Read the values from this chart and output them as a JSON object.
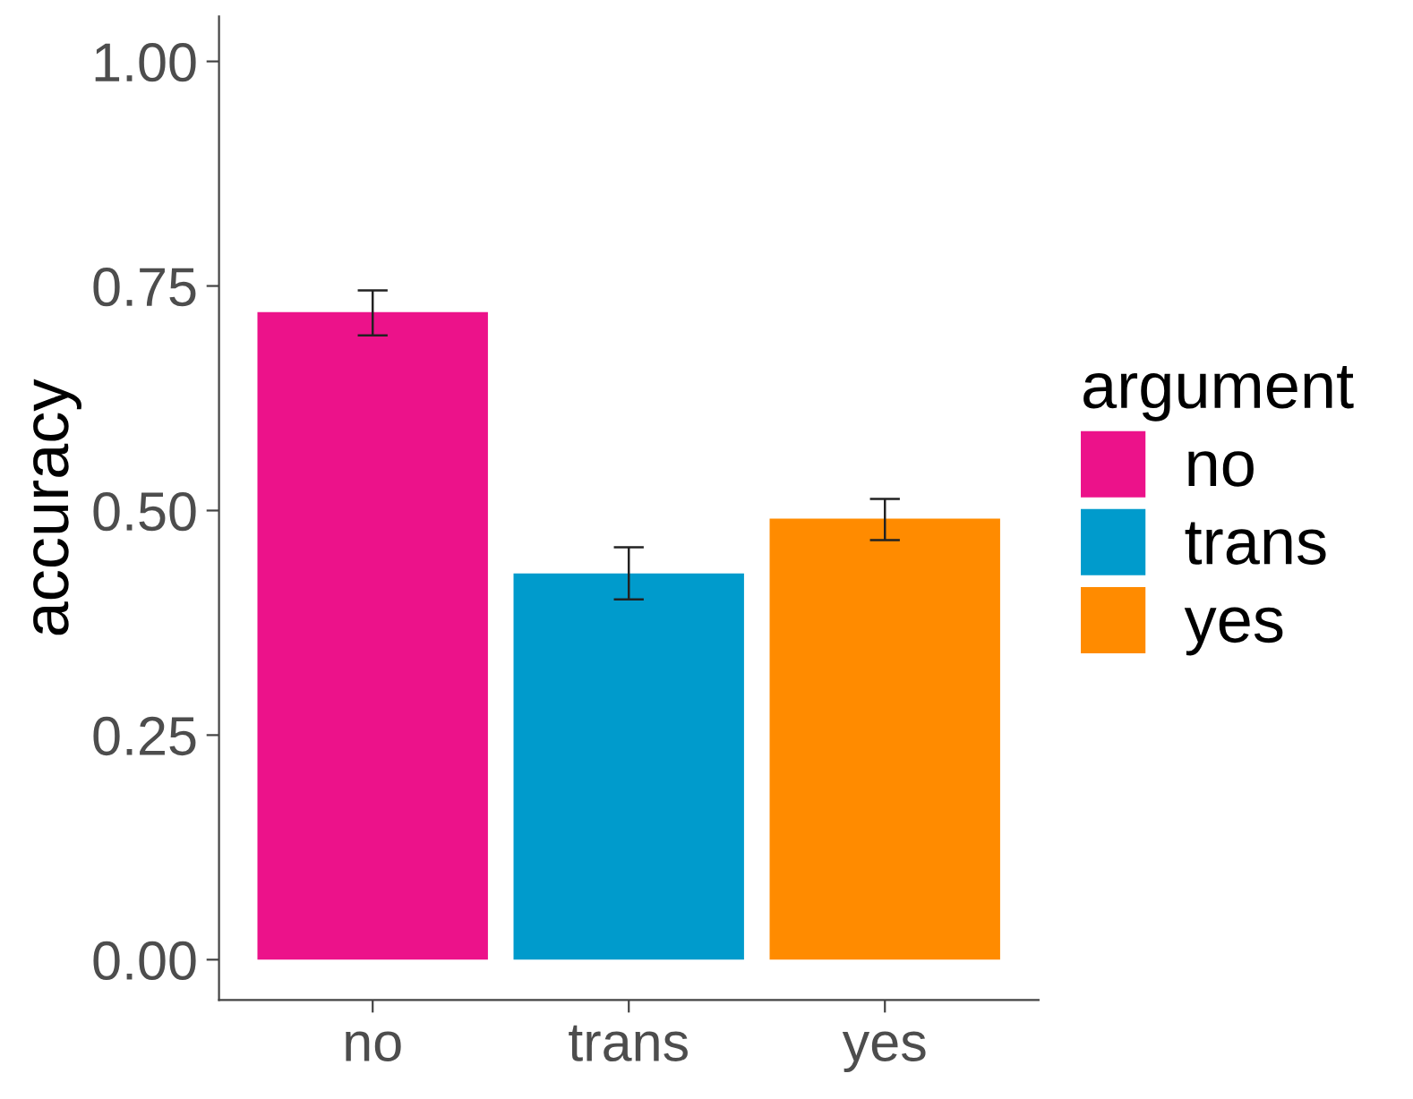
{
  "chart_data": {
    "type": "bar",
    "ylabel": "accuracy",
    "legend_title": "argument",
    "categories": [
      "no",
      "trans",
      "yes"
    ],
    "series": [
      {
        "name": "no",
        "color": "#ec128a",
        "values": [
          0.721,
          null,
          null
        ],
        "errors": [
          [
            0.695,
            0.745
          ],
          null,
          null
        ]
      },
      {
        "name": "trans",
        "color": "#009bcc",
        "values": [
          null,
          0.43,
          null
        ],
        "errors": [
          null,
          [
            0.401,
            0.459
          ],
          null
        ]
      },
      {
        "name": "yes",
        "color": "#ff8b00",
        "values": [
          null,
          null,
          0.491
        ],
        "errors": [
          null,
          null,
          [
            0.467,
            0.513
          ]
        ]
      }
    ],
    "ylim": [
      -0.045,
      1.05
    ],
    "yticks": [
      {
        "value": 0,
        "label": "0.00"
      },
      {
        "value": 0.25,
        "label": "0.25"
      },
      {
        "value": 0.5,
        "label": "0.50"
      },
      {
        "value": 0.75,
        "label": "0.75"
      },
      {
        "value": 1,
        "label": "1.00"
      }
    ],
    "legend": "right",
    "grid": false
  }
}
